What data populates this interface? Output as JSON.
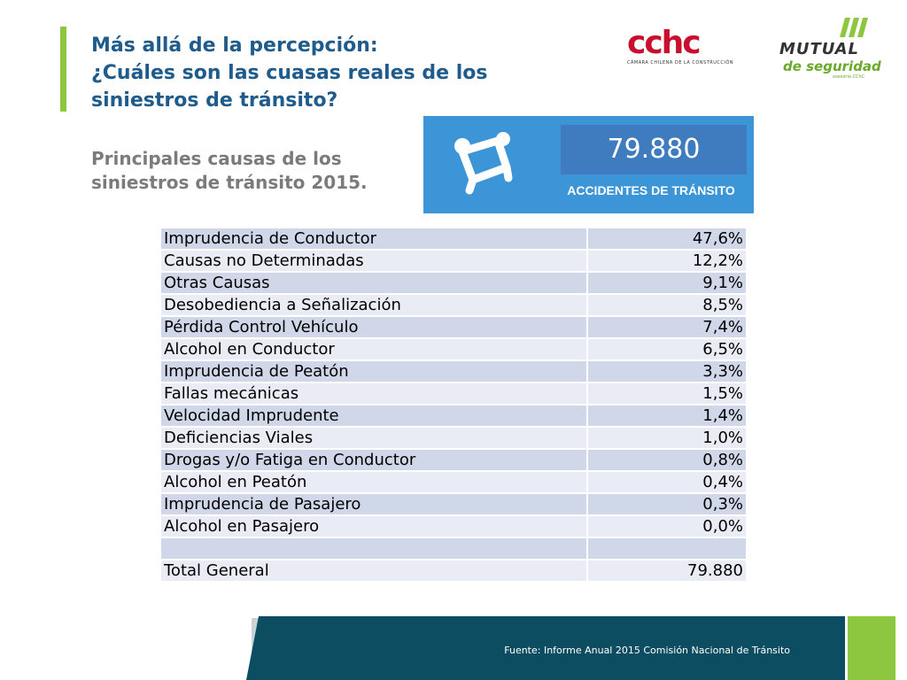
{
  "title": {
    "lines": [
      "Más allá de la percepción:",
      "¿Cuáles son las cuasas reales de los",
      "siniestros de tránsito?"
    ]
  },
  "subtitle": {
    "lines": [
      "Principales causas de los",
      "siniestros de tránsito 2015."
    ]
  },
  "logos": {
    "cchc": {
      "text": "cchc",
      "tagline": "CÁMARA CHILENA DE LA CONSTRUCCIÓN"
    },
    "mutual": {
      "line1": "MUTUAL",
      "line2": "de seguridad",
      "line3": "asesoría CChC"
    }
  },
  "stat": {
    "value": "79.880",
    "label": "ACCIDENTES DE TRÁNSITO",
    "icon": "car-crash-icon"
  },
  "table": {
    "rows": [
      {
        "cause": "Imprudencia de Conductor",
        "value": "47,6%"
      },
      {
        "cause": "Causas no Determinadas",
        "value": "12,2%"
      },
      {
        "cause": "Otras Causas",
        "value": "9,1%"
      },
      {
        "cause": "Desobediencia a Señalización",
        "value": "8,5%"
      },
      {
        "cause": "Pérdida Control Vehículo",
        "value": "7,4%"
      },
      {
        "cause": "Alcohol en Conductor",
        "value": "6,5%"
      },
      {
        "cause": "Imprudencia de Peatón",
        "value": "3,3%"
      },
      {
        "cause": "Fallas mecánicas",
        "value": "1,5%"
      },
      {
        "cause": "Velocidad Imprudente",
        "value": "1,4%"
      },
      {
        "cause": "Deficiencias Viales",
        "value": "1,0%"
      },
      {
        "cause": "Drogas y/o Fatiga en Conductor",
        "value": "0,8%"
      },
      {
        "cause": "Alcohol en Peatón",
        "value": "0,4%"
      },
      {
        "cause": "Imprudencia de Pasajero",
        "value": "0,3%"
      },
      {
        "cause": "Alcohol en Pasajero",
        "value": "0,0%"
      },
      {
        "cause": "",
        "value": ""
      },
      {
        "cause": "Total General",
        "value": "79.880"
      }
    ]
  },
  "footer": {
    "source": "Fuente: Informe Anual 2015 Comisión Nacional de Tránsito"
  },
  "colors": {
    "title": "#1f5c8b",
    "accent_green": "#8dc63f",
    "card_blue": "#3b95d6",
    "footer_teal": "#0d4d62"
  }
}
